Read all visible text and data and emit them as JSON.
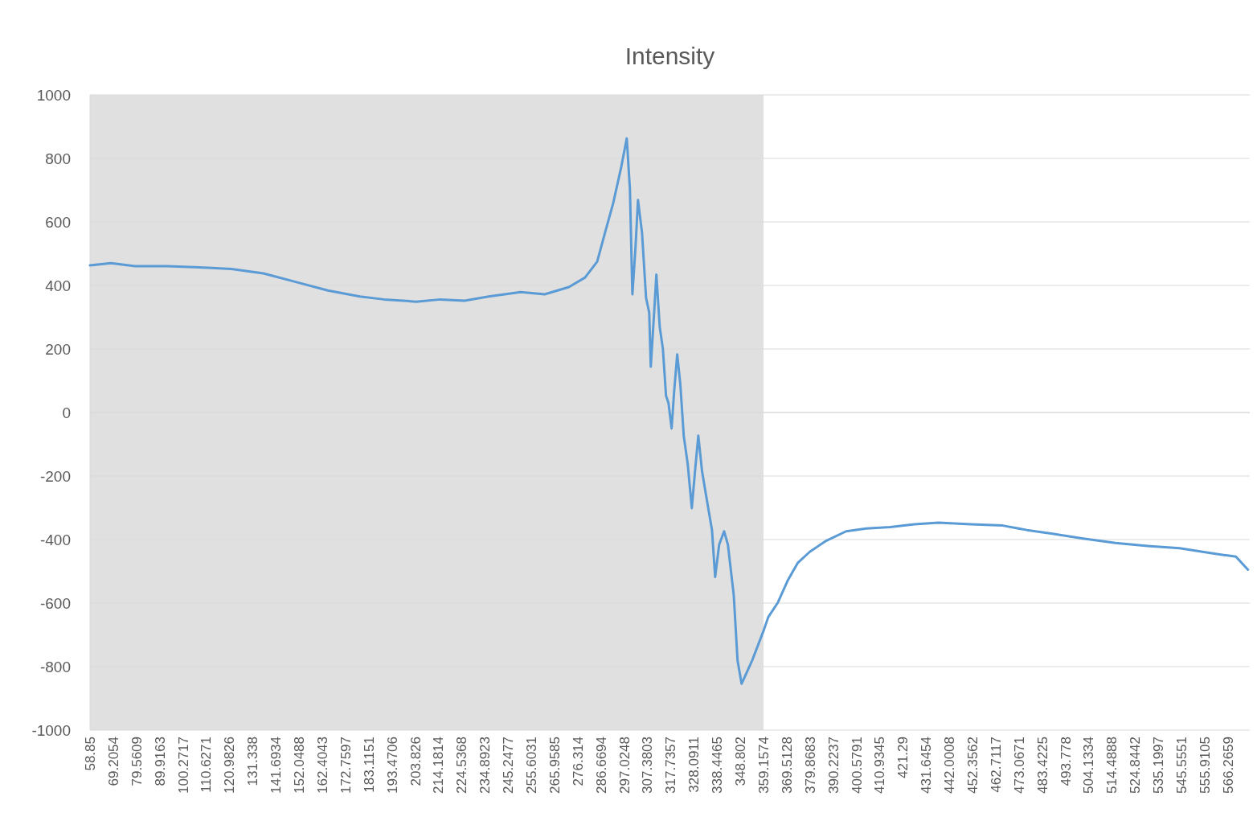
{
  "chart_data": {
    "type": "line",
    "title": "Intensity",
    "xlim": [
      58.85,
      576
    ],
    "ylim": [
      -1000,
      1000
    ],
    "yticks": [
      -1000,
      -800,
      -600,
      -400,
      -200,
      0,
      200,
      400,
      600,
      800,
      1000
    ],
    "xticks": [
      58.85,
      69.2054,
      79.5609,
      89.9163,
      100.2717,
      110.6271,
      120.9826,
      131.338,
      141.6934,
      152.0488,
      162.4043,
      172.7597,
      183.1151,
      193.4706,
      203.826,
      214.1814,
      224.5368,
      234.8923,
      245.2477,
      255.6031,
      265.9585,
      276.314,
      286.6694,
      297.0248,
      307.3803,
      317.7357,
      328.0911,
      338.4465,
      348.802,
      359.1574,
      369.5128,
      379.8683,
      390.2237,
      400.5791,
      410.9345,
      421.29,
      431.6454,
      442.0008,
      452.3562,
      462.7117,
      473.0671,
      483.4225,
      493.778,
      504.1334,
      514.4888,
      524.8442,
      535.1997,
      545.5551,
      555.9105,
      566.2659
    ],
    "grid": "y",
    "bands": [
      {
        "axis": "x",
        "from": 58.85,
        "to": 359.1574,
        "color": "#e0e0e0"
      }
    ],
    "series": [
      {
        "color": "#5b9bd5",
        "x": [
          58.85,
          68.2,
          78.9,
          93.2,
          107.6,
          121.9,
          136.2,
          150.6,
          164.9,
          179.2,
          190.0,
          204.3,
          215.1,
          225.8,
          236.6,
          250.9,
          261.6,
          272.4,
          279.6,
          285.0,
          288.5,
          292.1,
          295.7,
          298.2,
          299.6,
          300.7,
          302.1,
          303.2,
          305.0,
          306.8,
          308.2,
          308.9,
          310.4,
          311.4,
          312.9,
          314.3,
          315.7,
          316.8,
          318.2,
          319.3,
          320.7,
          322.1,
          323.6,
          325.4,
          327.2,
          328.6,
          330.1,
          331.8,
          334.0,
          336.2,
          337.6,
          339.4,
          341.6,
          343.3,
          345.9,
          347.6,
          349.4,
          351.2,
          354.1,
          356.6,
          359.1,
          361.3,
          365.6,
          369.9,
          374.5,
          379.9,
          387.1,
          396.0,
          405.0,
          415.7,
          426.5,
          437.2,
          451.6,
          465.9,
          476.6,
          487.4,
          501.7,
          516.1,
          530.4,
          544.7,
          559.0,
          569.8,
          575.2
        ],
        "values": [
          463,
          470,
          461,
          461,
          457,
          452,
          438,
          411,
          384,
          365,
          356,
          349,
          356,
          352,
          365,
          379,
          372,
          395,
          425,
          475,
          566,
          658,
          772,
          863,
          703,
          372,
          521,
          669,
          566,
          361,
          315,
          144,
          315,
          434,
          269,
          201,
          53,
          30,
          -50,
          64,
          183,
          87,
          -73,
          -164,
          -301,
          -187,
          -73,
          -187,
          -279,
          -370,
          -518,
          -416,
          -374,
          -416,
          -575,
          -781,
          -854,
          -826,
          -781,
          -735,
          -689,
          -644,
          -598,
          -530,
          -473,
          -438,
          -404,
          -374,
          -365,
          -361,
          -352,
          -347,
          -352,
          -356,
          -370,
          -381,
          -397,
          -411,
          -420,
          -427,
          -443,
          -454,
          -495
        ]
      }
    ]
  }
}
